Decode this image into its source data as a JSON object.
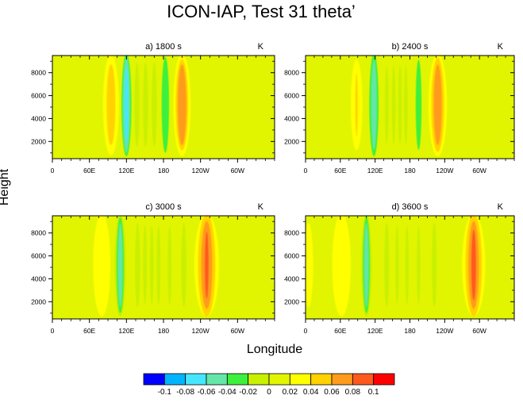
{
  "figure": {
    "title": "ICON-IAP, Test 31 theta’",
    "xlabel": "Longitude",
    "ylabel": "Height"
  },
  "colorbar": {
    "colors": [
      "#0000ff",
      "#00b4ff",
      "#46e6ff",
      "#64e6a8",
      "#3cf03c",
      "#c8f000",
      "#e1f500",
      "#ffff00",
      "#ffd200",
      "#ff9b1e",
      "#ff5a1e",
      "#ff0000"
    ],
    "labels": [
      "-0.1",
      "-0.08",
      "-0.06",
      "-0.04",
      "-0.02",
      "0",
      "0.02",
      "0.04",
      "0.06",
      "0.08",
      "0.1"
    ],
    "levels": [
      -0.1,
      -0.08,
      -0.06,
      -0.04,
      -0.02,
      0,
      0.02,
      0.04,
      0.06,
      0.08,
      0.1
    ]
  },
  "chart_data": [
    {
      "type": "heatmap",
      "title": "a) 1800 s",
      "units": "K",
      "xticks": [
        "0",
        "60E",
        "120E",
        "180",
        "120W",
        "60W"
      ],
      "xtick_values": [
        0,
        60,
        120,
        180,
        240,
        300
      ],
      "xlim": [
        0,
        360
      ],
      "yticks": [
        "2000",
        "4000",
        "6000",
        "8000"
      ],
      "ytick_values": [
        2000,
        4000,
        6000,
        8000
      ],
      "ylim": [
        500,
        9500
      ],
      "field_cells": [
        {
          "lon": 95,
          "width": 13,
          "level": 0.02
        },
        {
          "lon": 95,
          "width": 7,
          "level": 0.04
        },
        {
          "lon": 120,
          "width": 8,
          "level": -0.04
        },
        {
          "lon": 120,
          "width": 6,
          "level": -0.06
        },
        {
          "lon": 120,
          "width": 3,
          "level": -0.08
        },
        {
          "lon": 137,
          "width": 4,
          "level": -0.02
        },
        {
          "lon": 151,
          "width": 4,
          "level": -0.02
        },
        {
          "lon": 165,
          "width": 4,
          "level": -0.02
        },
        {
          "lon": 183,
          "width": 6,
          "level": -0.04
        },
        {
          "lon": 210,
          "width": 14,
          "level": 0.02
        },
        {
          "lon": 210,
          "width": 10,
          "level": 0.04
        },
        {
          "lon": 210,
          "width": 7,
          "level": 0.06
        }
      ]
    },
    {
      "type": "heatmap",
      "title": "b) 2400 s",
      "units": "K",
      "xticks": [
        "0",
        "60E",
        "120E",
        "180",
        "120W",
        "60W"
      ],
      "xtick_values": [
        0,
        60,
        120,
        180,
        240,
        300
      ],
      "xlim": [
        0,
        360
      ],
      "yticks": [
        "2000",
        "4000",
        "6000",
        "8000"
      ],
      "ytick_values": [
        2000,
        4000,
        6000,
        8000
      ],
      "ylim": [
        500,
        9500
      ],
      "field_cells": [
        {
          "lon": 88,
          "width": 10,
          "level": 0.02
        },
        {
          "lon": 88,
          "width": 2,
          "level": 0.04
        },
        {
          "lon": 118,
          "width": 8,
          "level": -0.04
        },
        {
          "lon": 118,
          "width": 5,
          "level": -0.06
        },
        {
          "lon": 140,
          "width": 3,
          "level": -0.02
        },
        {
          "lon": 152,
          "width": 3,
          "level": -0.02
        },
        {
          "lon": 163,
          "width": 3,
          "level": -0.02
        },
        {
          "lon": 173,
          "width": 3,
          "level": -0.02
        },
        {
          "lon": 195,
          "width": 5,
          "level": -0.04
        },
        {
          "lon": 228,
          "width": 16,
          "level": 0.02
        },
        {
          "lon": 228,
          "width": 11,
          "level": 0.04
        },
        {
          "lon": 228,
          "width": 7,
          "level": 0.06
        }
      ]
    },
    {
      "type": "heatmap",
      "title": "c) 3000 s",
      "units": "K",
      "xticks": [
        "0",
        "60E",
        "120E",
        "180",
        "120W",
        "60W"
      ],
      "xtick_values": [
        0,
        60,
        120,
        180,
        240,
        300
      ],
      "xlim": [
        0,
        360
      ],
      "yticks": [
        "2000",
        "4000",
        "6000",
        "8000"
      ],
      "ytick_values": [
        2000,
        4000,
        6000,
        8000
      ],
      "ylim": [
        500,
        9500
      ],
      "field_cells": [
        {
          "lon": 80,
          "width": 14,
          "level": 0.02
        },
        {
          "lon": 110,
          "width": 9,
          "level": -0.02
        },
        {
          "lon": 110,
          "width": 6,
          "level": -0.04
        },
        {
          "lon": 110,
          "width": 4,
          "level": -0.06
        },
        {
          "lon": 138,
          "width": 4,
          "level": -0.02
        },
        {
          "lon": 150,
          "width": 3,
          "level": -0.02
        },
        {
          "lon": 161,
          "width": 3,
          "level": -0.02
        },
        {
          "lon": 172,
          "width": 3,
          "level": -0.02
        },
        {
          "lon": 190,
          "width": 3,
          "level": -0.02
        },
        {
          "lon": 213,
          "width": 4,
          "level": -0.02
        },
        {
          "lon": 250,
          "width": 20,
          "level": 0.02
        },
        {
          "lon": 250,
          "width": 14,
          "level": 0.04
        },
        {
          "lon": 250,
          "width": 9,
          "level": 0.06
        },
        {
          "lon": 250,
          "width": 3,
          "level": 0.08
        }
      ]
    },
    {
      "type": "heatmap",
      "title": "d) 3600 s",
      "units": "K",
      "xticks": [
        "0",
        "60E",
        "120E",
        "180",
        "120W",
        "60W"
      ],
      "xtick_values": [
        0,
        60,
        120,
        180,
        240,
        300
      ],
      "xlim": [
        0,
        360
      ],
      "yticks": [
        "2000",
        "4000",
        "6000",
        "8000"
      ],
      "ytick_values": [
        2000,
        4000,
        6000,
        8000
      ],
      "ylim": [
        500,
        9500
      ],
      "field_cells": [
        {
          "lon": 5,
          "width": 8,
          "level": 0.02
        },
        {
          "lon": 62,
          "width": 16,
          "level": 0.02
        },
        {
          "lon": 105,
          "width": 9,
          "level": -0.02
        },
        {
          "lon": 105,
          "width": 6,
          "level": -0.04
        },
        {
          "lon": 105,
          "width": 4,
          "level": -0.06
        },
        {
          "lon": 140,
          "width": 4,
          "level": -0.02
        },
        {
          "lon": 158,
          "width": 3,
          "level": -0.02
        },
        {
          "lon": 175,
          "width": 3,
          "level": -0.02
        },
        {
          "lon": 195,
          "width": 3,
          "level": -0.02
        },
        {
          "lon": 222,
          "width": 4,
          "level": -0.02
        },
        {
          "lon": 290,
          "width": 20,
          "level": 0.02
        },
        {
          "lon": 290,
          "width": 14,
          "level": 0.04
        },
        {
          "lon": 290,
          "width": 9,
          "level": 0.06
        },
        {
          "lon": 290,
          "width": 4,
          "level": 0.08
        }
      ]
    }
  ]
}
